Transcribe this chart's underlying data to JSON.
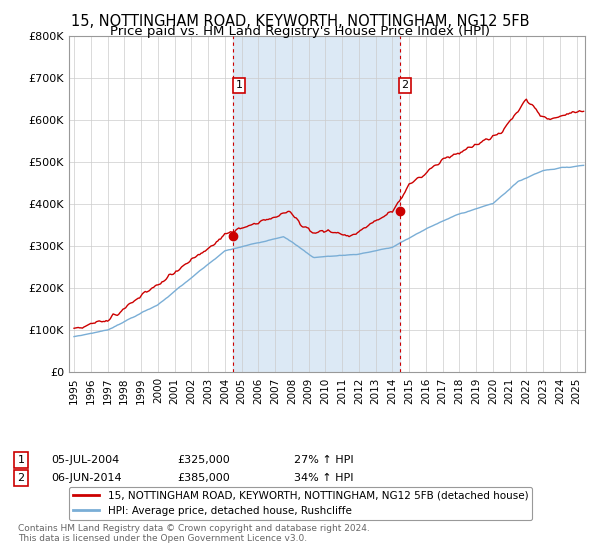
{
  "title1": "15, NOTTINGHAM ROAD, KEYWORTH, NOTTINGHAM, NG12 5FB",
  "title2": "Price paid vs. HM Land Registry's House Price Index (HPI)",
  "title1_fontsize": 10.5,
  "title2_fontsize": 9.5,
  "hpi_color": "#7aaed6",
  "price_color": "#cc0000",
  "bg_color": "#ffffff",
  "plot_bg_color": "#ffffff",
  "shaded_color": "#dce9f5",
  "grid_color": "#cccccc",
  "legend_label_red": "15, NOTTINGHAM ROAD, KEYWORTH, NOTTINGHAM, NG12 5FB (detached house)",
  "legend_label_blue": "HPI: Average price, detached house, Rushcliffe",
  "sale1_date_label": "05-JUL-2004",
  "sale1_price_label": "£325,000",
  "sale1_pct_label": "27% ↑ HPI",
  "sale2_date_label": "06-JUN-2014",
  "sale2_price_label": "£385,000",
  "sale2_pct_label": "34% ↑ HPI",
  "sale1_date_num": 2004.51,
  "sale1_price": 325000,
  "sale2_date_num": 2014.43,
  "sale2_price": 385000,
  "ylim": [
    0,
    800000
  ],
  "xlim_start": 1994.7,
  "xlim_end": 2025.5,
  "footer_text": "Contains HM Land Registry data © Crown copyright and database right 2024.\nThis data is licensed under the Open Government Licence v3.0.",
  "yticks": [
    0,
    100000,
    200000,
    300000,
    400000,
    500000,
    600000,
    700000,
    800000
  ],
  "ytick_labels": [
    "£0",
    "£100K",
    "£200K",
    "£300K",
    "£400K",
    "£500K",
    "£600K",
    "£700K",
    "£800K"
  ],
  "xtick_years": [
    1995,
    1996,
    1997,
    1998,
    1999,
    2000,
    2001,
    2002,
    2003,
    2004,
    2005,
    2006,
    2007,
    2008,
    2009,
    2010,
    2011,
    2012,
    2013,
    2014,
    2015,
    2016,
    2017,
    2018,
    2019,
    2020,
    2021,
    2022,
    2023,
    2024,
    2025
  ]
}
